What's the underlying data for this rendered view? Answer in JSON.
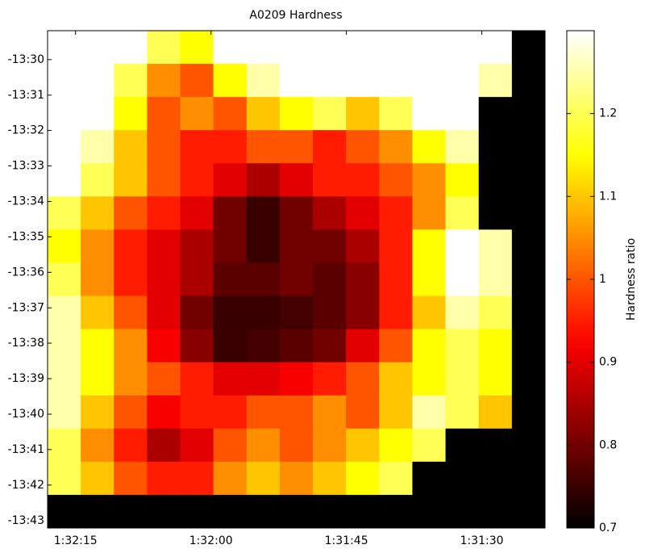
{
  "chart_data": {
    "type": "heatmap",
    "title": "A0209 Hardness",
    "colorbar_label": "Hardness ratio",
    "colormap": "hot",
    "null_color": "#000000",
    "clim": [
      0.7,
      1.3
    ],
    "cticks": [
      0.7,
      0.8,
      0.9,
      1,
      1.1,
      1.2
    ],
    "xlim": [
      5538.1,
      5483.0
    ],
    "xticks": [
      {
        "value": 5535,
        "label": "1:32:15"
      },
      {
        "value": 5520,
        "label": "1:32:00"
      },
      {
        "value": 5505,
        "label": "1:31:45"
      },
      {
        "value": 5490,
        "label": "1:31:30"
      }
    ],
    "ylim": [
      -13.7202,
      -13.4864
    ],
    "yticks": [
      {
        "value": -13.5,
        "label": "-13:30"
      },
      {
        "value": -13.5167,
        "label": "-13:31"
      },
      {
        "value": -13.5333,
        "label": "-13:32"
      },
      {
        "value": -13.55,
        "label": "-13:33"
      },
      {
        "value": -13.5667,
        "label": "-13:34"
      },
      {
        "value": -13.5833,
        "label": "-13:35"
      },
      {
        "value": -13.6,
        "label": "-13:36"
      },
      {
        "value": -13.6167,
        "label": "-13:37"
      },
      {
        "value": -13.6333,
        "label": "-13:38"
      },
      {
        "value": -13.65,
        "label": "-13:39"
      },
      {
        "value": -13.6667,
        "label": "-13:40"
      },
      {
        "value": -13.6833,
        "label": "-13:41"
      },
      {
        "value": -13.7,
        "label": "-13:42"
      },
      {
        "value": -13.7167,
        "label": "-13:43"
      }
    ],
    "z": [
      [
        1.3,
        1.3,
        1.3,
        1.2,
        1.15,
        1.3,
        1.3,
        1.3,
        1.3,
        1.3,
        1.3,
        1.3,
        1.3,
        1.3,
        null
      ],
      [
        1.3,
        1.3,
        1.2,
        1.05,
        1.0,
        1.15,
        1.25,
        1.3,
        1.3,
        1.3,
        1.3,
        1.3,
        1.3,
        1.25,
        null
      ],
      [
        1.3,
        1.3,
        1.15,
        1.0,
        1.05,
        1.0,
        1.1,
        1.15,
        1.2,
        1.1,
        1.2,
        1.3,
        1.3,
        null,
        null
      ],
      [
        1.3,
        1.25,
        1.1,
        1.0,
        0.95,
        0.95,
        1.0,
        1.0,
        0.95,
        1.0,
        1.05,
        1.15,
        1.25,
        null,
        null
      ],
      [
        1.3,
        1.2,
        1.1,
        1.0,
        0.95,
        0.9,
        0.85,
        0.9,
        0.95,
        0.95,
        1.0,
        1.05,
        1.15,
        null,
        null
      ],
      [
        1.2,
        1.1,
        1.0,
        0.95,
        0.9,
        0.8,
        0.75,
        0.8,
        0.85,
        0.9,
        0.95,
        1.05,
        1.2,
        null,
        null
      ],
      [
        1.15,
        1.05,
        0.95,
        0.9,
        0.85,
        0.8,
        0.75,
        0.8,
        0.8,
        0.85,
        0.95,
        1.15,
        1.3,
        1.25,
        null
      ],
      [
        1.2,
        1.05,
        0.95,
        0.9,
        0.85,
        0.78,
        0.78,
        0.8,
        0.78,
        0.82,
        0.95,
        1.15,
        1.3,
        1.25,
        null
      ],
      [
        1.25,
        1.1,
        1.0,
        0.9,
        0.8,
        0.75,
        0.75,
        0.76,
        0.78,
        0.82,
        0.95,
        1.1,
        1.25,
        1.2,
        null
      ],
      [
        1.25,
        1.15,
        1.05,
        0.92,
        0.82,
        0.75,
        0.76,
        0.78,
        0.8,
        0.9,
        1.0,
        1.15,
        1.2,
        1.15,
        null
      ],
      [
        1.25,
        1.15,
        1.05,
        1.0,
        0.95,
        0.9,
        0.9,
        0.92,
        0.95,
        1.0,
        1.1,
        1.15,
        1.2,
        1.15,
        null
      ],
      [
        1.25,
        1.1,
        1.0,
        0.92,
        0.95,
        0.95,
        1.0,
        1.0,
        1.05,
        1.0,
        1.1,
        1.25,
        1.2,
        1.1,
        null
      ],
      [
        1.2,
        1.05,
        0.95,
        0.85,
        0.9,
        1.0,
        1.05,
        1.0,
        1.05,
        1.1,
        1.15,
        1.2,
        null,
        null,
        null
      ],
      [
        1.2,
        1.1,
        1.0,
        0.95,
        0.95,
        1.05,
        1.1,
        1.05,
        1.1,
        1.15,
        1.2,
        null,
        null,
        null,
        null
      ],
      [
        null,
        null,
        null,
        null,
        null,
        null,
        null,
        null,
        null,
        null,
        null,
        null,
        null,
        null,
        null
      ]
    ]
  }
}
